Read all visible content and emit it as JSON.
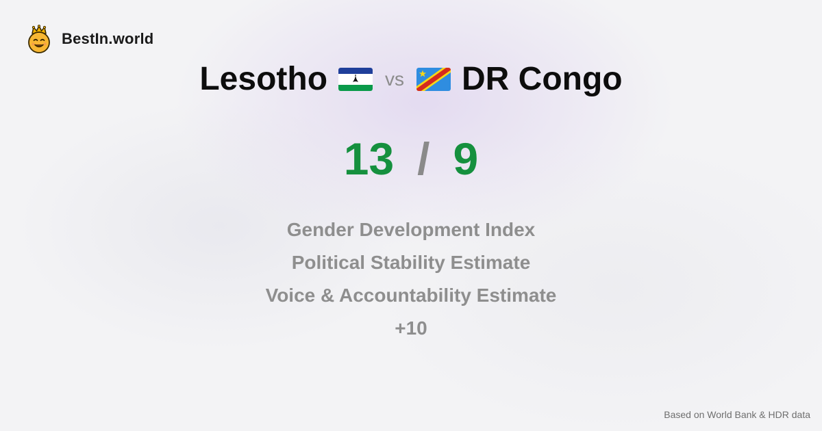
{
  "brand": {
    "name": "BestIn.world",
    "logo_icon": "crowned-smiley-icon"
  },
  "comparison": {
    "left_country": "Lesotho",
    "left_flag": "lesotho-flag-icon",
    "vs_label": "vs",
    "right_country": "DR Congo",
    "right_flag": "dr-congo-flag-icon"
  },
  "score": {
    "left": "13",
    "separator": "/",
    "right": "9",
    "color": "#15903e"
  },
  "metrics": [
    "Gender Development Index",
    "Political Stability Estimate",
    "Voice & Accountability Estimate",
    "+10"
  ],
  "footer": {
    "source": "Based on World Bank & HDR data"
  }
}
